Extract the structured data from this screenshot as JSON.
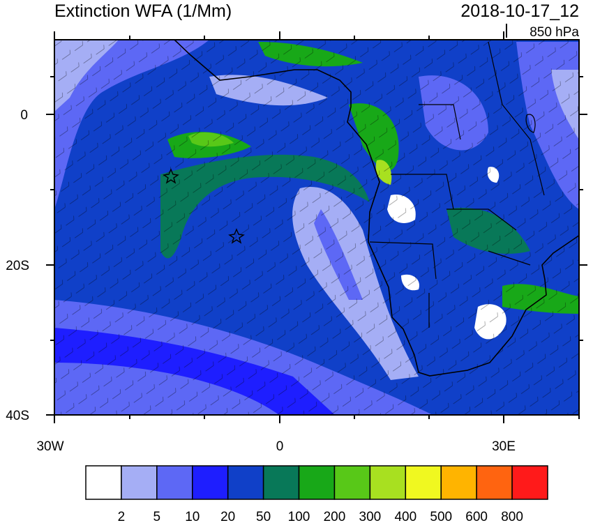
{
  "title": "Extinction WFA (1/Mm)",
  "datetime": "2018-10-17_12",
  "level": "850 hPa",
  "axes": {
    "x_ticks": [
      "30W",
      "0",
      "30E"
    ],
    "y_ticks": [
      "0",
      "20S",
      "40S"
    ]
  },
  "colorbar": {
    "colors": [
      "#ffffff",
      "#a5aef5",
      "#5d68f5",
      "#1e1eff",
      "#1040c8",
      "#087858",
      "#18a818",
      "#58c818",
      "#a8e020",
      "#f0f820",
      "#ffb400",
      "#ff6410",
      "#ff1a1a"
    ],
    "labels": [
      "2",
      "5",
      "10",
      "20",
      "50",
      "100",
      "200",
      "300",
      "400",
      "500",
      "600",
      "800"
    ]
  }
}
